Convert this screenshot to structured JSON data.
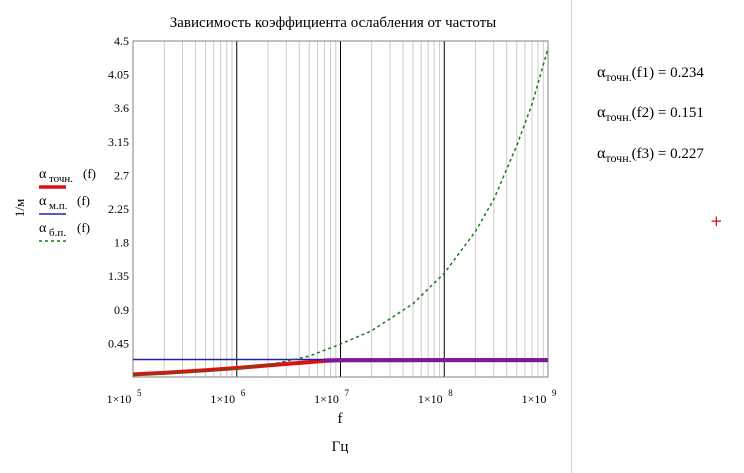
{
  "chart_data": {
    "type": "line",
    "title": "Зависимость коэффициента ослабления от частоты",
    "xlabel": "f",
    "xunit": "Гц",
    "ylabel": "1/м",
    "xscale": "log",
    "xlim": [
      100000,
      1000000000
    ],
    "ylim": [
      0,
      4.5
    ],
    "grid": true,
    "x_ticks": [
      {
        "value": 100000,
        "mant": "1×10",
        "exp": "5"
      },
      {
        "value": 1000000,
        "mant": "1×10",
        "exp": "6"
      },
      {
        "value": 10000000,
        "mant": "1×10",
        "exp": "7"
      },
      {
        "value": 100000000,
        "mant": "1×10",
        "exp": "8"
      },
      {
        "value": 1000000000,
        "mant": "1×10",
        "exp": "9"
      }
    ],
    "y_ticks": [
      "0",
      "0.45",
      "0.9",
      "1.35",
      "1.8",
      "2.25",
      "2.7",
      "3.15",
      "3.6",
      "4.05",
      "4.5"
    ],
    "legend_position": "left",
    "series": [
      {
        "name": "α_точн.(f)",
        "sym": "α",
        "sub": "точн.",
        "arg": "(f)",
        "color": "#e01010",
        "style": "solid",
        "width": 4,
        "x": [
          100000,
          200000,
          500000,
          1000000,
          2000000,
          5000000,
          7000000,
          10000000,
          100000000,
          1000000000
        ],
        "y": [
          0.035,
          0.055,
          0.09,
          0.12,
          0.155,
          0.2,
          0.215,
          0.223,
          0.227,
          0.227
        ]
      },
      {
        "name": "α_м.п.(f)",
        "sym": "α",
        "sub": "м.п.",
        "arg": "(f)",
        "color": "#2020b0",
        "style": "solid",
        "width": 1.5,
        "x": [
          100000,
          1000000,
          10000000,
          100000000,
          1000000000
        ],
        "y": [
          0.234,
          0.234,
          0.234,
          0.234,
          0.234
        ]
      },
      {
        "name": "α_б.п.(f)",
        "sym": "α",
        "sub": "б.п.",
        "arg": "(f)",
        "color": "#1a7a1a",
        "style": "dashed",
        "width": 1.5,
        "x": [
          100000,
          200000,
          500000,
          1000000,
          2000000,
          5000000,
          10000000,
          20000000,
          50000000,
          100000000,
          200000000,
          300000000,
          500000000,
          700000000,
          1000000000
        ],
        "y": [
          0.03,
          0.045,
          0.075,
          0.11,
          0.16,
          0.28,
          0.44,
          0.62,
          0.98,
          1.39,
          1.95,
          2.38,
          3.1,
          3.65,
          4.4
        ]
      },
      {
        "name": "",
        "color": "#7a1a9a",
        "style": "solid",
        "width": 4,
        "x": [
          7000000,
          10000000,
          100000000,
          1000000000
        ],
        "y": [
          0.222,
          0.227,
          0.227,
          0.227
        ]
      }
    ]
  },
  "results": [
    {
      "sym": "α",
      "sub": "точн.",
      "arg": "(f1)",
      "eq": "=",
      "value": "0.234"
    },
    {
      "sym": "α",
      "sub": "точн.",
      "arg": "(f2)",
      "eq": "=",
      "value": "0.151"
    },
    {
      "sym": "α",
      "sub": "точн.",
      "arg": "(f3)",
      "eq": "=",
      "value": "0.227"
    }
  ],
  "cursor_marker": "+"
}
